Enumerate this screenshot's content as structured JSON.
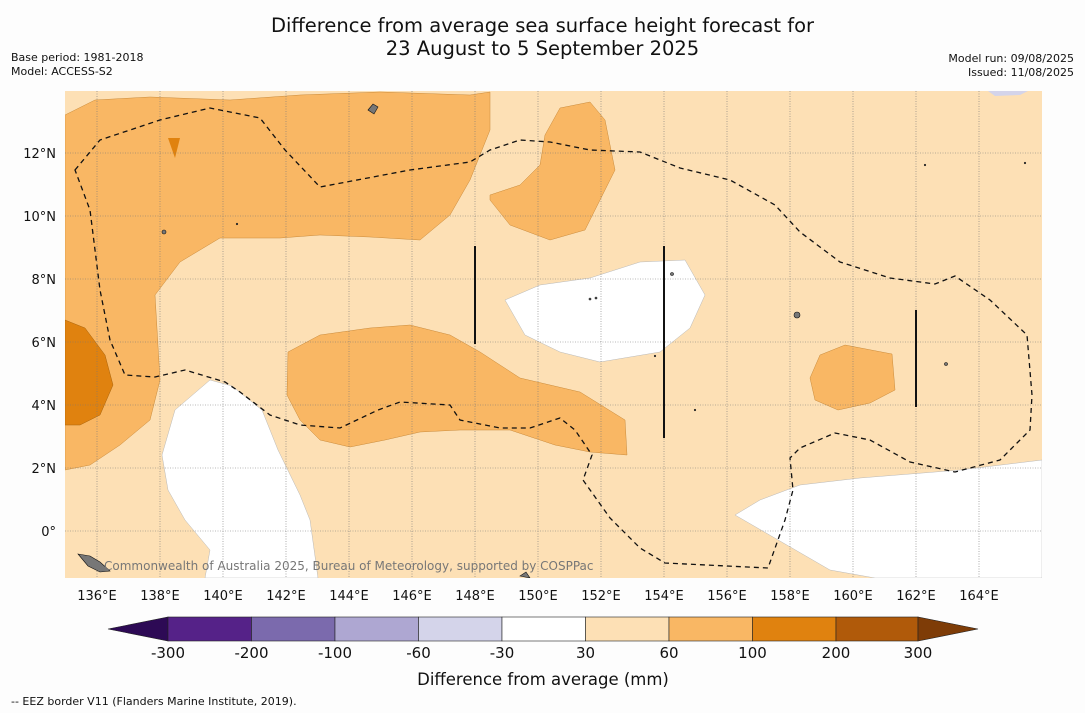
{
  "title": {
    "line1": "Difference from average sea surface height forecast for",
    "line2": "23 August to 5 September 2025"
  },
  "meta_left": {
    "base_period": "Base period: 1981-2018",
    "model": "Model: ACCESS-S2"
  },
  "meta_right": {
    "model_run": "Model run: 09/08/2025",
    "issued": "Issued: 11/08/2025"
  },
  "map": {
    "lon_labels": [
      "136°E",
      "138°E",
      "140°E",
      "142°E",
      "144°E",
      "146°E",
      "148°E",
      "150°E",
      "152°E",
      "154°E",
      "156°E",
      "158°E",
      "160°E",
      "162°E",
      "164°E"
    ],
    "lat_labels": [
      "12°N",
      "10°N",
      "8°N",
      "6°N",
      "4°N",
      "2°N",
      "0°"
    ],
    "attribution": "Commonwealth of Australia 2025, Bureau of Meteorology, supported by COSPPac"
  },
  "colorbar": {
    "ticks": [
      "-300",
      "-200",
      "-100",
      "-60",
      "-30",
      "30",
      "60",
      "100",
      "200",
      "300"
    ],
    "colors": [
      "#2d0a55",
      "#552288",
      "#7b6aad",
      "#aea7d2",
      "#d4d4ea",
      "#ffffff",
      "#fde0b5",
      "#f9b764",
      "#e0820f",
      "#b05a0a",
      "#7e3c07"
    ],
    "label": "Difference from average (mm)"
  },
  "legend": {
    "eez_text": "-- EEZ border V11 (Flanders Marine Institute, 2019)."
  }
}
